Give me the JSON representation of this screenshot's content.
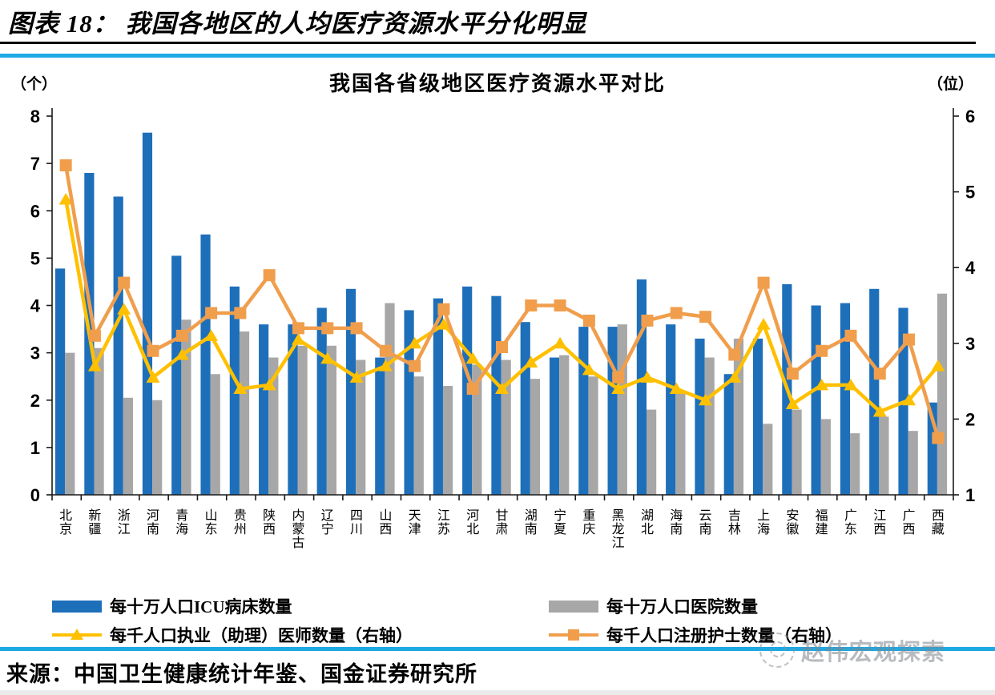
{
  "header": {
    "title": "图表 18：  我国各地区的人均医疗资源水平分化明显"
  },
  "chart": {
    "title": "我国各省级地区医疗资源水平对比",
    "left_unit": "（个）",
    "right_unit": "（位）"
  },
  "chart_data": {
    "type": "bar+line",
    "title": "我国各省级地区医疗资源水平对比",
    "grid": false,
    "legend_position": "bottom",
    "categories": [
      "北京",
      "新疆",
      "浙江",
      "河南",
      "青海",
      "山东",
      "贵州",
      "陕西",
      "内蒙古",
      "辽宁",
      "四川",
      "山西",
      "天津",
      "江苏",
      "河北",
      "甘肃",
      "湖南",
      "宁夏",
      "重庆",
      "黑龙江",
      "湖北",
      "海南",
      "云南",
      "吉林",
      "上海",
      "安徽",
      "福建",
      "广东",
      "江西",
      "广西",
      "西藏"
    ],
    "left_axis": {
      "label": "（个）",
      "min": 0,
      "max": 8,
      "step": 1
    },
    "right_axis": {
      "label": "（位）",
      "min": 1,
      "max": 6,
      "step": 1
    },
    "series": [
      {
        "name": "每十万人口ICU病床数量",
        "type": "bar",
        "axis": "left",
        "color": "#1E6FBA",
        "values": [
          4.78,
          6.8,
          6.3,
          7.65,
          5.05,
          5.5,
          4.4,
          3.6,
          3.6,
          3.95,
          4.35,
          2.9,
          3.9,
          4.15,
          4.4,
          4.2,
          3.65,
          2.9,
          3.55,
          3.55,
          4.55,
          3.6,
          3.3,
          2.55,
          3.3,
          4.45,
          4.0,
          4.05,
          4.35,
          3.95,
          1.95
        ]
      },
      {
        "name": "每十万人口医院数量",
        "type": "bar",
        "axis": "left",
        "color": "#A7A7A7",
        "values": [
          3.0,
          3.1,
          2.05,
          2.0,
          3.7,
          2.55,
          3.45,
          2.9,
          3.15,
          3.15,
          2.85,
          4.05,
          2.5,
          2.3,
          2.75,
          2.85,
          2.45,
          2.95,
          2.5,
          3.6,
          1.8,
          2.2,
          2.9,
          3.3,
          1.5,
          1.8,
          1.6,
          1.3,
          1.65,
          1.35,
          4.25
        ]
      },
      {
        "name": "每千人口执业（助理）医师数量（右轴）",
        "type": "line",
        "marker": "triangle",
        "axis": "right",
        "color": "#FFC000",
        "values": [
          4.9,
          2.7,
          3.45,
          2.55,
          2.85,
          3.1,
          2.4,
          2.45,
          3.05,
          2.8,
          2.55,
          2.7,
          3.0,
          3.25,
          2.8,
          2.4,
          2.75,
          3.0,
          2.65,
          2.4,
          2.55,
          2.4,
          2.25,
          2.55,
          3.25,
          2.2,
          2.45,
          2.45,
          2.1,
          2.25,
          2.7
        ]
      },
      {
        "name": "每千人口注册护士数量（右轴）",
        "type": "line",
        "marker": "square",
        "axis": "right",
        "color": "#F09E4C",
        "values": [
          5.35,
          3.1,
          3.8,
          2.9,
          3.1,
          3.4,
          3.4,
          3.9,
          3.2,
          3.2,
          3.2,
          2.9,
          2.7,
          3.45,
          2.4,
          2.95,
          3.5,
          3.5,
          3.3,
          2.55,
          3.3,
          3.4,
          3.35,
          2.85,
          3.8,
          2.6,
          2.9,
          3.1,
          2.6,
          3.05,
          1.75
        ]
      }
    ]
  },
  "source": "来源：中国卫生健康统计年鉴、国金证券研究所",
  "watermark": "赵伟宏观探索"
}
